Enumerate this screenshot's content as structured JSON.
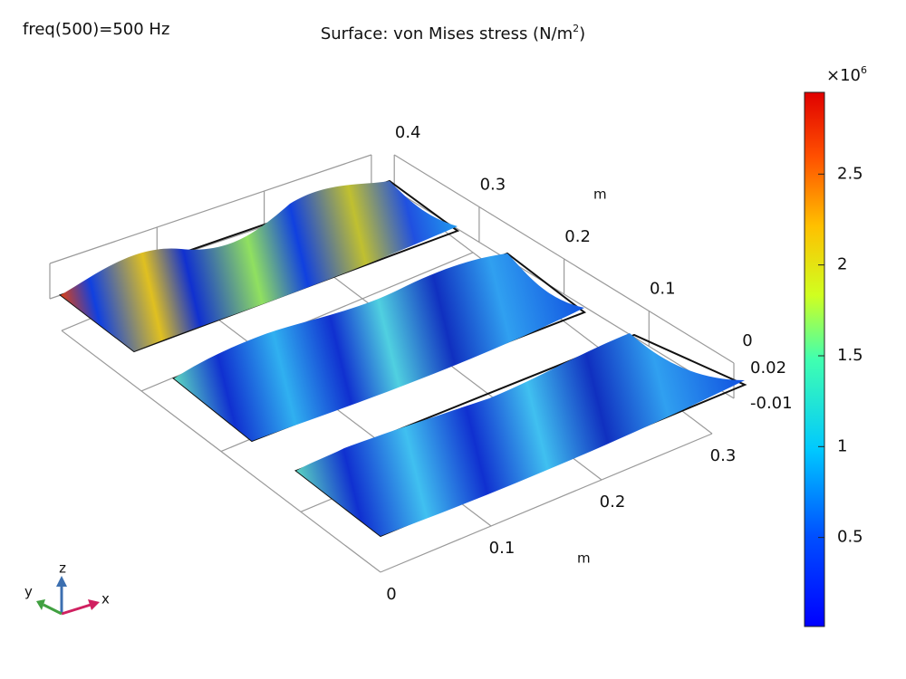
{
  "header": {
    "parameter": "freq(500)=500 Hz",
    "title_prefix": "Surface: von Mises stress (N/m",
    "title_sup": "2",
    "title_suffix": ")"
  },
  "axes": {
    "x": {
      "unit": "m",
      "ticks": [
        0,
        0.1,
        0.2,
        0.3
      ]
    },
    "y": {
      "unit": "m",
      "ticks": [
        0,
        0.1,
        0.2,
        0.3,
        0.4
      ]
    },
    "z": {
      "ticks": [
        0.02,
        -0.01
      ]
    }
  },
  "colorbar": {
    "multiplier_base": "×10",
    "multiplier_exp": "6",
    "lim": [
      0.01,
      2.95
    ],
    "ticks": [
      0.5,
      1,
      1.5,
      2,
      2.5
    ]
  },
  "triad": {
    "x": "x",
    "y": "y",
    "z": "z"
  }
}
